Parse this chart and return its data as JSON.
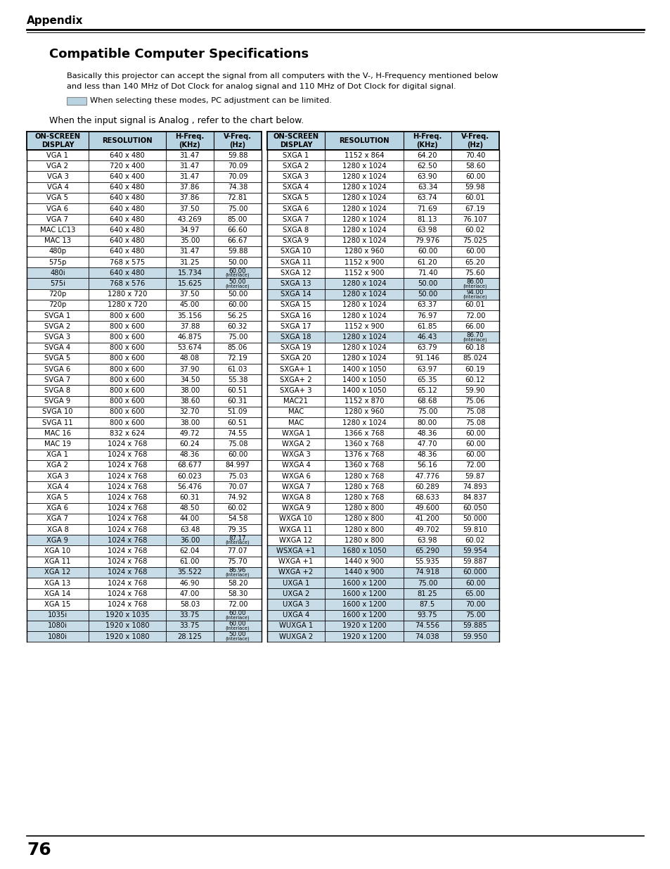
{
  "title": "Compatible Computer Specifications",
  "appendix_label": "Appendix",
  "body_text_line1": "Basically this projector can accept the signal from all computers with the V-, H-Frequency mentioned below",
  "body_text_line2": "and less than 140 MHz of Dot Clock for analog signal and 110 MHz of Dot Clock for digital signal.",
  "legend_text": "When selecting these modes, PC adjustment can be limited.",
  "analog_text": "When the input signal is Analog , refer to the chart below.",
  "page_number": "76",
  "left_table_headers": [
    "ON-SCREEN\nDISPLAY",
    "RESOLUTION",
    "H-Freq.\n(KHz)",
    "V-Freq.\n(Hz)"
  ],
  "right_table_headers": [
    "ON-SCREEN\nDISPLAY",
    "RESOLUTION",
    "H-Freq.\n(KHz)",
    "V-Freq.\n(Hz)"
  ],
  "left_table": [
    [
      "VGA 1",
      "640 x 480",
      "31.47",
      "59.88"
    ],
    [
      "VGA 2",
      "720 x 400",
      "31.47",
      "70.09"
    ],
    [
      "VGA 3",
      "640 x 400",
      "31.47",
      "70.09"
    ],
    [
      "VGA 4",
      "640 x 480",
      "37.86",
      "74.38"
    ],
    [
      "VGA 5",
      "640 x 480",
      "37.86",
      "72.81"
    ],
    [
      "VGA 6",
      "640 x 480",
      "37.50",
      "75.00"
    ],
    [
      "VGA 7",
      "640 x 480",
      "43.269",
      "85.00"
    ],
    [
      "MAC LC13",
      "640 x 480",
      "34.97",
      "66.60"
    ],
    [
      "MAC 13",
      "640 x 480",
      "35.00",
      "66.67"
    ],
    [
      "480p",
      "640 x 480",
      "31.47",
      "59.88"
    ],
    [
      "575p",
      "768 x 575",
      "31.25",
      "50.00"
    ],
    [
      "480i",
      "640 x 480",
      "15.734",
      "60.00\n(Interlace)"
    ],
    [
      "575i",
      "768 x 576",
      "15.625",
      "50.00\n(Interlace)"
    ],
    [
      "720p",
      "1280 x 720",
      "37.50",
      "50.00"
    ],
    [
      "720p",
      "1280 x 720",
      "45.00",
      "60.00"
    ],
    [
      "SVGA 1",
      "800 x 600",
      "35.156",
      "56.25"
    ],
    [
      "SVGA 2",
      "800 x 600",
      "37.88",
      "60.32"
    ],
    [
      "SVGA 3",
      "800 x 600",
      "46.875",
      "75.00"
    ],
    [
      "SVGA 4",
      "800 x 600",
      "53.674",
      "85.06"
    ],
    [
      "SVGA 5",
      "800 x 600",
      "48.08",
      "72.19"
    ],
    [
      "SVGA 6",
      "800 x 600",
      "37.90",
      "61.03"
    ],
    [
      "SVGA 7",
      "800 x 600",
      "34.50",
      "55.38"
    ],
    [
      "SVGA 8",
      "800 x 600",
      "38.00",
      "60.51"
    ],
    [
      "SVGA 9",
      "800 x 600",
      "38.60",
      "60.31"
    ],
    [
      "SVGA 10",
      "800 x 600",
      "32.70",
      "51.09"
    ],
    [
      "SVGA 11",
      "800 x 600",
      "38.00",
      "60.51"
    ],
    [
      "MAC 16",
      "832 x 624",
      "49.72",
      "74.55"
    ],
    [
      "MAC 19",
      "1024 x 768",
      "60.24",
      "75.08"
    ],
    [
      "XGA 1",
      "1024 x 768",
      "48.36",
      "60.00"
    ],
    [
      "XGA 2",
      "1024 x 768",
      "68.677",
      "84.997"
    ],
    [
      "XGA 3",
      "1024 x 768",
      "60.023",
      "75.03"
    ],
    [
      "XGA 4",
      "1024 x 768",
      "56.476",
      "70.07"
    ],
    [
      "XGA 5",
      "1024 x 768",
      "60.31",
      "74.92"
    ],
    [
      "XGA 6",
      "1024 x 768",
      "48.50",
      "60.02"
    ],
    [
      "XGA 7",
      "1024 x 768",
      "44.00",
      "54.58"
    ],
    [
      "XGA 8",
      "1024 x 768",
      "63.48",
      "79.35"
    ],
    [
      "XGA 9",
      "1024 x 768",
      "36.00",
      "87.17\n(Interlace)"
    ],
    [
      "XGA 10",
      "1024 x 768",
      "62.04",
      "77.07"
    ],
    [
      "XGA 11",
      "1024 x 768",
      "61.00",
      "75.70"
    ],
    [
      "XGA 12",
      "1024 x 768",
      "35.522",
      "86.96\n(Interlace)"
    ],
    [
      "XGA 13",
      "1024 x 768",
      "46.90",
      "58.20"
    ],
    [
      "XGA 14",
      "1024 x 768",
      "47.00",
      "58.30"
    ],
    [
      "XGA 15",
      "1024 x 768",
      "58.03",
      "72.00"
    ],
    [
      "1035i",
      "1920 x 1035",
      "33.75",
      "60.00\n(Interlace)"
    ],
    [
      "1080i",
      "1920 x 1080",
      "33.75",
      "60.00\n(Interlace)"
    ],
    [
      "1080i",
      "1920 x 1080",
      "28.125",
      "50.00\n(Interlace)"
    ]
  ],
  "right_table": [
    [
      "SXGA 1",
      "1152 x 864",
      "64.20",
      "70.40"
    ],
    [
      "SXGA 2",
      "1280 x 1024",
      "62.50",
      "58.60"
    ],
    [
      "SXGA 3",
      "1280 x 1024",
      "63.90",
      "60.00"
    ],
    [
      "SXGA 4",
      "1280 x 1024",
      "63.34",
      "59.98"
    ],
    [
      "SXGA 5",
      "1280 x 1024",
      "63.74",
      "60.01"
    ],
    [
      "SXGA 6",
      "1280 x 1024",
      "71.69",
      "67.19"
    ],
    [
      "SXGA 7",
      "1280 x 1024",
      "81.13",
      "76.107"
    ],
    [
      "SXGA 8",
      "1280 x 1024",
      "63.98",
      "60.02"
    ],
    [
      "SXGA 9",
      "1280 x 1024",
      "79.976",
      "75.025"
    ],
    [
      "SXGA 10",
      "1280 x 960",
      "60.00",
      "60.00"
    ],
    [
      "SXGA 11",
      "1152 x 900",
      "61.20",
      "65.20"
    ],
    [
      "SXGA 12",
      "1152 x 900",
      "71.40",
      "75.60"
    ],
    [
      "SXGA 13",
      "1280 x 1024",
      "50.00",
      "86.00\n(Interlace)"
    ],
    [
      "SXGA 14",
      "1280 x 1024",
      "50.00",
      "94.00\n(Interlace)"
    ],
    [
      "SXGA 15",
      "1280 x 1024",
      "63.37",
      "60.01"
    ],
    [
      "SXGA 16",
      "1280 x 1024",
      "76.97",
      "72.00"
    ],
    [
      "SXGA 17",
      "1152 x 900",
      "61.85",
      "66.00"
    ],
    [
      "SXGA 18",
      "1280 x 1024",
      "46.43",
      "86.70\n(Interlace)"
    ],
    [
      "SXGA 19",
      "1280 x 1024",
      "63.79",
      "60.18"
    ],
    [
      "SXGA 20",
      "1280 x 1024",
      "91.146",
      "85.024"
    ],
    [
      "SXGA+ 1",
      "1400 x 1050",
      "63.97",
      "60.19"
    ],
    [
      "SXGA+ 2",
      "1400 x 1050",
      "65.35",
      "60.12"
    ],
    [
      "SXGA+ 3",
      "1400 x 1050",
      "65.12",
      "59.90"
    ],
    [
      "MAC21",
      "1152 x 870",
      "68.68",
      "75.06"
    ],
    [
      "MAC",
      "1280 x 960",
      "75.00",
      "75.08"
    ],
    [
      "MAC",
      "1280 x 1024",
      "80.00",
      "75.08"
    ],
    [
      "WXGA 1",
      "1366 x 768",
      "48.36",
      "60.00"
    ],
    [
      "WXGA 2",
      "1360 x 768",
      "47.70",
      "60.00"
    ],
    [
      "WXGA 3",
      "1376 x 768",
      "48.36",
      "60.00"
    ],
    [
      "WXGA 4",
      "1360 x 768",
      "56.16",
      "72.00"
    ],
    [
      "WXGA 6",
      "1280 x 768",
      "47.776",
      "59.87"
    ],
    [
      "WXGA 7",
      "1280 x 768",
      "60.289",
      "74.893"
    ],
    [
      "WXGA 8",
      "1280 x 768",
      "68.633",
      "84.837"
    ],
    [
      "WXGA 9",
      "1280 x 800",
      "49.600",
      "60.050"
    ],
    [
      "WXGA 10",
      "1280 x 800",
      "41.200",
      "50.000"
    ],
    [
      "WXGA 11",
      "1280 x 800",
      "49.702",
      "59.810"
    ],
    [
      "WXGA 12",
      "1280 x 800",
      "63.98",
      "60.02"
    ],
    [
      "WSXGA +1",
      "1680 x 1050",
      "65.290",
      "59.954"
    ],
    [
      "WXGA +1",
      "1440 x 900",
      "55.935",
      "59.887"
    ],
    [
      "WXGA +2",
      "1440 x 900",
      "74.918",
      "60.000"
    ],
    [
      "UXGA 1",
      "1600 x 1200",
      "75.00",
      "60.00"
    ],
    [
      "UXGA 2",
      "1600 x 1200",
      "81.25",
      "65.00"
    ],
    [
      "UXGA 3",
      "1600 x 1200",
      "87.5",
      "70.00"
    ],
    [
      "UXGA 4",
      "1600 x 1200",
      "93.75",
      "75.00"
    ],
    [
      "WUXGA 1",
      "1920 x 1200",
      "74.556",
      "59.885"
    ],
    [
      "WUXGA 2",
      "1920 x 1200",
      "74.038",
      "59.950"
    ]
  ],
  "highlight_rows_left": [
    11,
    12,
    36,
    39,
    43,
    44,
    45
  ],
  "highlight_rows_right": [
    12,
    13,
    17,
    37,
    39,
    40,
    41,
    42,
    43,
    44,
    45
  ],
  "header_highlight_color": "#b8d4e3",
  "row_highlight_color": "#c8dce8",
  "bg_color": "#ffffff"
}
